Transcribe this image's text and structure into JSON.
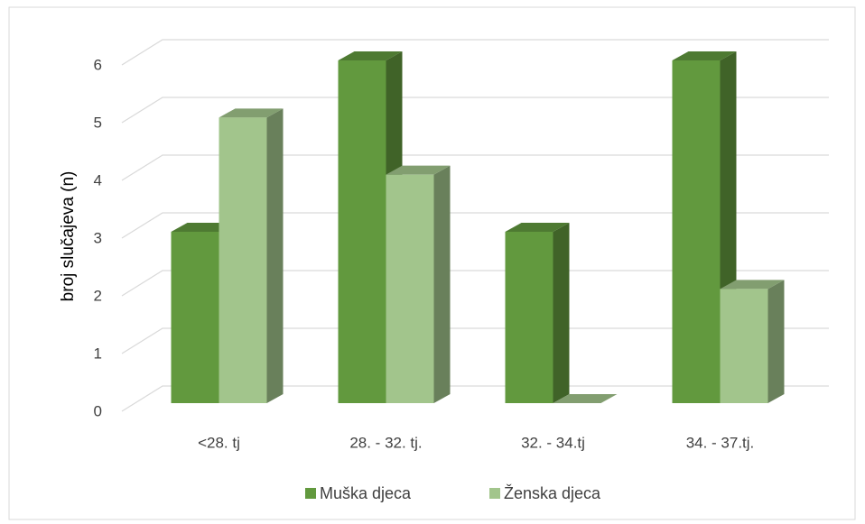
{
  "chart_data": {
    "type": "bar3d",
    "y_axis_label": "broj slučajeva (n)",
    "categories": [
      "<28. tj",
      "28. - 32. tj.",
      "32. - 34.tj",
      "34. - 37.tj."
    ],
    "series": [
      {
        "name": "Muška djeca",
        "color": "#62993e",
        "values": [
          3,
          6,
          3,
          6
        ]
      },
      {
        "name": "Ženska djeca",
        "color": "#a2c58c",
        "values": [
          5,
          4,
          0,
          2
        ]
      }
    ],
    "ylim": [
      0,
      6
    ],
    "yticks": [
      0,
      1,
      2,
      3,
      4,
      5,
      6
    ],
    "grid": true,
    "legend": "bottom"
  }
}
